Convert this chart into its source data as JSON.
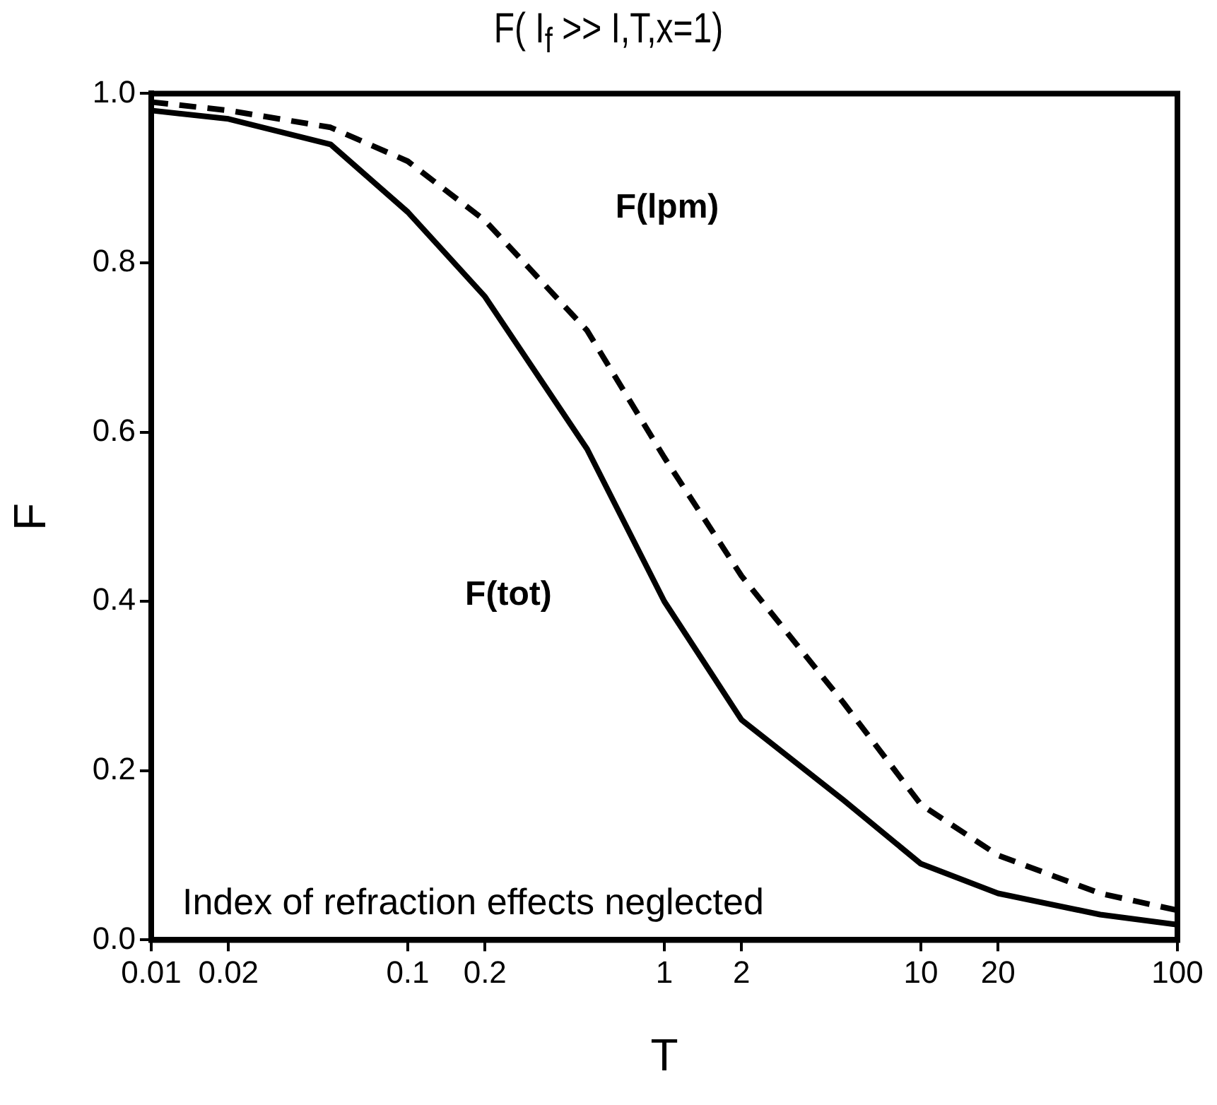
{
  "chart_data": {
    "type": "line",
    "title": "F( I$_{f}$ >> I,T,x=1)",
    "xlabel": "T",
    "ylabel": "F",
    "log": "x",
    "grid": false,
    "legend": false,
    "marker": "none",
    "x": [
      0.01,
      0.02,
      0.05,
      0.1,
      0.2,
      0.5,
      1,
      2,
      5,
      10,
      20,
      50,
      100
    ],
    "series": [
      {
        "name": "F(lpm)",
        "color": "#000000",
        "line_style": "dashed",
        "values": [
          0.99,
          0.98,
          0.96,
          0.92,
          0.85,
          0.72,
          0.57,
          0.43,
          0.28,
          0.16,
          0.1,
          0.055,
          0.035
        ]
      },
      {
        "name": "F(tot)",
        "color": "#000000",
        "line_style": "solid",
        "values": [
          0.98,
          0.97,
          0.94,
          0.86,
          0.76,
          0.58,
          0.4,
          0.26,
          0.165,
          0.09,
          0.055,
          0.03,
          0.018
        ]
      }
    ],
    "xlim": [
      0.01,
      100
    ],
    "xticks": [
      0.01,
      0.02,
      0.1,
      0.2,
      1,
      2,
      10,
      20,
      100
    ],
    "ylim": [
      0,
      1
    ],
    "yticks": [
      {
        "value": 0,
        "label": "0.0"
      },
      0.2,
      0.4,
      0.6,
      0.8,
      {
        "value": 1,
        "label": "1.0"
      }
    ],
    "annotations": [
      "Index of refraction effects neglected"
    ]
  }
}
